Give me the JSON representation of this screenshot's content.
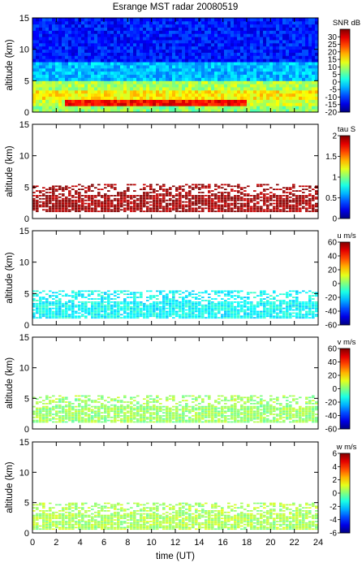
{
  "title": "Esrange MST radar 20080519",
  "xlabel": "time (UT)",
  "chart_data": [
    {
      "type": "heatmap",
      "name": "SNR",
      "colorbar_label": "SNR dB",
      "ylabel": "altitude (km)",
      "xlim": [
        0,
        24
      ],
      "ylim": [
        0,
        15
      ],
      "clim": [
        -20,
        35
      ],
      "x_ticks": [
        0,
        2,
        4,
        6,
        8,
        10,
        12,
        14,
        16,
        18,
        20,
        22,
        24
      ],
      "y_ticks": [
        0,
        5,
        10,
        15
      ],
      "cbar_ticks": [
        -20,
        -15,
        -10,
        -5,
        0,
        5,
        10,
        15,
        20,
        25,
        30
      ],
      "layers": [
        {
          "alt_min": 0.0,
          "alt_max": 1.0,
          "value": 8
        },
        {
          "alt_min": 1.0,
          "alt_max": 2.0,
          "value": 28,
          "time_min": 2.5,
          "time_max": 18.0
        },
        {
          "alt_min": 2.0,
          "alt_max": 3.5,
          "value": 15
        },
        {
          "alt_min": 3.5,
          "alt_max": 5.0,
          "value": 10
        },
        {
          "alt_min": 5.0,
          "alt_max": 8.0,
          "value": -3
        },
        {
          "alt_min": 8.0,
          "alt_max": 15.0,
          "value": -12
        }
      ]
    },
    {
      "type": "heatmap",
      "name": "tau",
      "colorbar_label": "tau S",
      "ylabel": "altitude (km)",
      "xlim": [
        0,
        24
      ],
      "ylim": [
        0,
        15
      ],
      "clim": [
        0,
        2
      ],
      "x_ticks": [
        0,
        2,
        4,
        6,
        8,
        10,
        12,
        14,
        16,
        18,
        20,
        22,
        24
      ],
      "y_ticks": [
        0,
        5,
        10,
        15
      ],
      "cbar_ticks": [
        0,
        0.5,
        1,
        1.5,
        2
      ],
      "data_region": {
        "alt_min": 1.0,
        "alt_max": 5.5
      },
      "typical_value": 1.95
    },
    {
      "type": "heatmap",
      "name": "u",
      "colorbar_label": "u m/s",
      "ylabel": "altitude (km)",
      "xlim": [
        0,
        24
      ],
      "ylim": [
        0,
        15
      ],
      "clim": [
        -60,
        60
      ],
      "x_ticks": [
        0,
        2,
        4,
        6,
        8,
        10,
        12,
        14,
        16,
        18,
        20,
        22,
        24
      ],
      "y_ticks": [
        0,
        5,
        10,
        15
      ],
      "cbar_ticks": [
        -60,
        -40,
        -20,
        0,
        20,
        40,
        60
      ],
      "data_region": {
        "alt_min": 1.0,
        "alt_max": 5.5
      },
      "typical_value": -15
    },
    {
      "type": "heatmap",
      "name": "v",
      "colorbar_label": "v m/s",
      "ylabel": "altitude (km)",
      "xlim": [
        0,
        24
      ],
      "ylim": [
        0,
        15
      ],
      "clim": [
        -60,
        60
      ],
      "x_ticks": [
        0,
        2,
        4,
        6,
        8,
        10,
        12,
        14,
        16,
        18,
        20,
        22,
        24
      ],
      "y_ticks": [
        0,
        5,
        10,
        15
      ],
      "cbar_ticks": [
        -60,
        -40,
        -20,
        0,
        20,
        40,
        60
      ],
      "data_region": {
        "alt_min": 1.0,
        "alt_max": 5.5
      },
      "typical_value": 3
    },
    {
      "type": "heatmap",
      "name": "w",
      "colorbar_label": "w m/s",
      "ylabel": "altitude (km)",
      "xlim": [
        0,
        24
      ],
      "ylim": [
        0,
        15
      ],
      "clim": [
        -6,
        6
      ],
      "x_ticks": [
        0,
        2,
        4,
        6,
        8,
        10,
        12,
        14,
        16,
        18,
        20,
        22,
        24
      ],
      "y_ticks": [
        0,
        5,
        10,
        15
      ],
      "cbar_ticks": [
        -6,
        -4,
        -2,
        0,
        2,
        4,
        6
      ],
      "data_region": {
        "alt_min": 0.5,
        "alt_max": 5.0
      },
      "typical_value": 0.5
    }
  ]
}
